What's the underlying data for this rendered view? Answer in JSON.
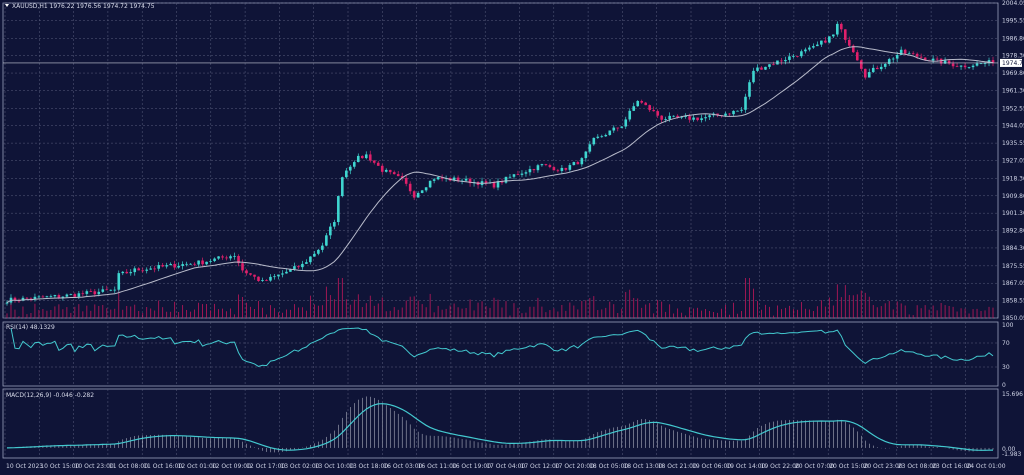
{
  "header": {
    "symbol": "XAUUSD,H1",
    "open": "1976.22",
    "high": "1976.56",
    "low": "1974.72",
    "close": "1974.75"
  },
  "colors": {
    "background": "#0f1437",
    "bull": "#3fd6d0",
    "bear": "#e0206a",
    "ma": "#b9bccb",
    "rsi": "#43c9cf",
    "macd": "#43c9cf",
    "grid": "#5a5f7e",
    "volume": "#c0185a"
  },
  "chart_data": [
    {
      "type": "candlestick",
      "title": "XAUUSD,H1",
      "ylim": [
        1850.05,
        2004.05
      ],
      "y_ticks": [
        "2004.05",
        "1995.55",
        "1986.80",
        "1978.30",
        "1969.80",
        "1961.30",
        "1952.55",
        "1944.05",
        "1935.55",
        "1927.05",
        "1918.30",
        "1909.80",
        "1901.30",
        "1892.80",
        "1884.30",
        "1875.55",
        "1867.05",
        "1858.55",
        "1850.05"
      ],
      "current_price": "1974.75",
      "x_ticks": [
        "10 Oct 2023",
        "10 Oct 15:00",
        "10 Oct 23:00",
        "11 Oct 08:00",
        "11 Oct 16:00",
        "12 Oct 01:00",
        "12 Oct 09:00",
        "12 Oct 17:00",
        "13 Oct 02:00",
        "13 Oct 10:00",
        "13 Oct 18:00",
        "16 Oct 03:00",
        "16 Oct 11:00",
        "16 Oct 19:00",
        "17 Oct 04:00",
        "17 Oct 12:00",
        "17 Oct 20:00",
        "18 Oct 05:00",
        "18 Oct 13:00",
        "18 Oct 21:00",
        "19 Oct 06:00",
        "19 Oct 14:00",
        "19 Oct 22:00",
        "20 Oct 07:00",
        "20 Oct 15:00",
        "20 Oct 23:00",
        "23 Oct 08:00",
        "23 Oct 16:00",
        "24 Oct 01:00"
      ],
      "close_path_bar_price": [
        [
          0,
          1858.8
        ],
        [
          14,
          1860.8
        ],
        [
          27,
          1863.7
        ],
        [
          28,
          1871
        ],
        [
          32,
          1873.5
        ],
        [
          49,
          1877.4
        ],
        [
          57,
          1880.9
        ],
        [
          59,
          1873.5
        ],
        [
          64,
          1867.6
        ],
        [
          74,
          1876
        ],
        [
          79,
          1885.7
        ],
        [
          82,
          1897.9
        ],
        [
          84,
          1919.9
        ],
        [
          87,
          1927.3
        ],
        [
          90,
          1929.7
        ],
        [
          94,
          1922.4
        ],
        [
          99,
          1917.5
        ],
        [
          102,
          1910.1
        ],
        [
          107,
          1918.5
        ],
        [
          114,
          1917.5
        ],
        [
          122,
          1915
        ],
        [
          127,
          1919.9
        ],
        [
          134,
          1924.8
        ],
        [
          139,
          1922.4
        ],
        [
          144,
          1927.3
        ],
        [
          147,
          1937
        ],
        [
          154,
          1944.3
        ],
        [
          158,
          1956.5
        ],
        [
          164,
          1947.7
        ],
        [
          174,
          1947.7
        ],
        [
          184,
          1951.7
        ],
        [
          187,
          1971.2
        ],
        [
          194,
          1976.1
        ],
        [
          202,
          1982
        ],
        [
          207,
          1988.4
        ],
        [
          208,
          1993.3
        ],
        [
          212,
          1981
        ],
        [
          215,
          1968.8
        ],
        [
          219,
          1973.7
        ],
        [
          224,
          1980
        ],
        [
          232,
          1976.1
        ],
        [
          239,
          1973.2
        ],
        [
          247,
          1975.2
        ]
      ],
      "moving_average": "SMA overlay",
      "volume": true
    },
    {
      "type": "line",
      "title": "RSI(14) 48.1329",
      "label": "RSI(14)",
      "value": "48.1329",
      "ylim": [
        0,
        100
      ],
      "levels": [
        "100",
        "70",
        "30",
        "0"
      ]
    },
    {
      "type": "histogram+line",
      "title": "MACD(12,26,9) -0.046 -0.282",
      "label": "MACD(12,26,9)",
      "values": [
        "-0.046",
        "-0.282"
      ],
      "ylim": [
        -1.983,
        15.696
      ],
      "y_ticks": [
        "15.696",
        "0.00",
        "-1.983"
      ]
    }
  ]
}
